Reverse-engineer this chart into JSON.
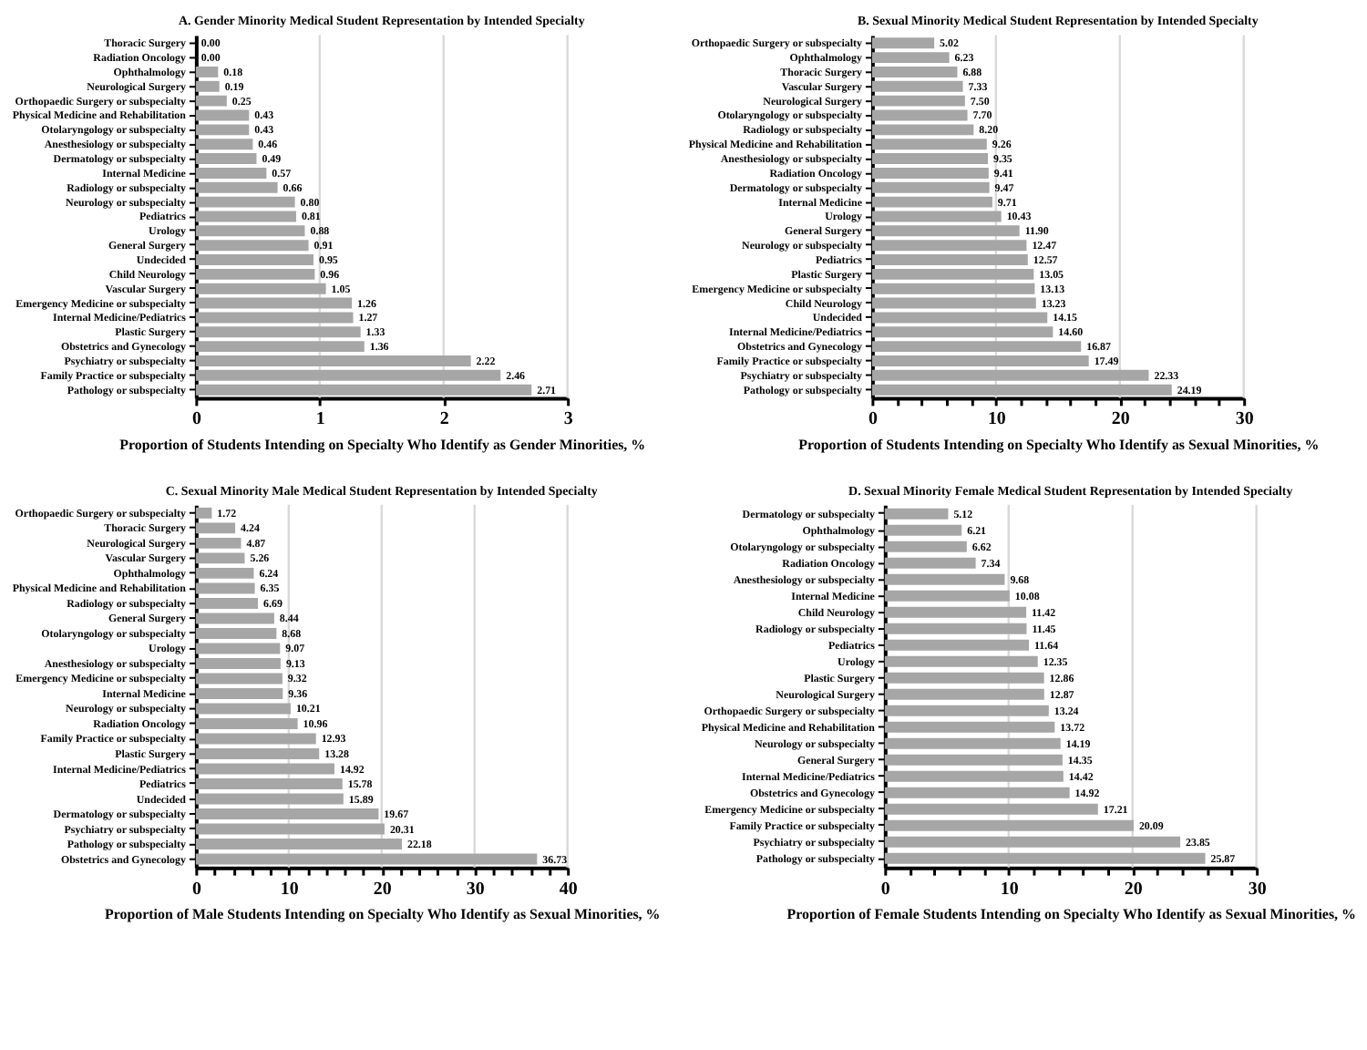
{
  "chart_data": [
    {
      "type": "bar",
      "orientation": "horizontal",
      "title": "A. Gender Minority Medical Student Representation by Intended Specialty",
      "xlabel": "Proportion of Students Intending on Specialty Who Identify as Gender Minorities,  %",
      "categories": [
        "Thoracic Surgery",
        "Radiation Oncology",
        "Ophthalmology",
        "Neurological Surgery",
        "Orthopaedic Surgery or subspecialty",
        "Physical Medicine and Rehabilitation",
        "Otolaryngology or subspecialty",
        "Anesthesiology or subspecialty",
        "Dermatology or subspecialty",
        "Internal Medicine",
        "Radiology or subspecialty",
        "Neurology or subspecialty",
        "Pediatrics",
        "Urology",
        "General Surgery",
        "Undecided",
        "Child Neurology",
        "Vascular Surgery",
        "Emergency Medicine or subspecialty",
        "Internal Medicine/Pediatrics",
        "Plastic Surgery",
        "Obstetrics and Gynecology",
        "Psychiatry or subspecialty",
        "Family Practice or subspecialty",
        "Pathology or subspecialty"
      ],
      "values": [
        0.0,
        0.0,
        0.18,
        0.19,
        0.25,
        0.43,
        0.43,
        0.46,
        0.49,
        0.57,
        0.66,
        0.8,
        0.81,
        0.88,
        0.91,
        0.95,
        0.96,
        1.05,
        1.26,
        1.27,
        1.33,
        1.36,
        2.22,
        2.46,
        2.71
      ],
      "value_labels": [
        "0.00",
        "0.00",
        "0.18",
        "0.19",
        "0.25",
        "0.43",
        "0.43",
        "0.46",
        "0.49",
        "0.57",
        "0.66",
        "0.80",
        "0.81",
        "0.88",
        "0.91",
        "0.95",
        "0.96",
        "1.05",
        "1.26",
        "1.27",
        "1.33",
        "1.36",
        "2.22",
        "2.46",
        "2.71"
      ],
      "color": "#a6a6a6",
      "xlim": [
        0,
        3
      ],
      "xticks": [
        0,
        1,
        2,
        3
      ],
      "grid": "x"
    },
    {
      "type": "bar",
      "orientation": "horizontal",
      "title": "B. Sexual Minority Medical Student Representation by Intended Specialty",
      "xlabel": "Proportion of  Students Intending on Specialty Who Identify as Sexual Minorities,  %",
      "categories": [
        "Orthopaedic Surgery or subspecialty",
        "Ophthalmology",
        "Thoracic Surgery",
        "Vascular Surgery",
        "Neurological Surgery",
        "Otolaryngology or subspecialty",
        "Radiology or subspecialty",
        "Physical Medicine and Rehabilitation",
        "Anesthesiology or subspecialty",
        "Radiation Oncology",
        "Dermatology or subspecialty",
        "Internal Medicine",
        "Urology",
        "General Surgery",
        "Neurology or subspecialty",
        "Pediatrics",
        "Plastic Surgery",
        "Emergency Medicine or subspecialty",
        "Child Neurology",
        "Undecided",
        "Internal Medicine/Pediatrics",
        "Obstetrics and Gynecology",
        "Family Practice or subspecialty",
        "Psychiatry or subspecialty",
        "Pathology or subspecialty"
      ],
      "values": [
        5.02,
        6.23,
        6.88,
        7.33,
        7.5,
        7.7,
        8.2,
        9.26,
        9.35,
        9.41,
        9.47,
        9.71,
        10.43,
        11.9,
        12.47,
        12.57,
        13.05,
        13.13,
        13.23,
        14.15,
        14.6,
        16.87,
        17.49,
        22.33,
        24.19
      ],
      "value_labels": [
        "5.02",
        "6.23",
        "6.88",
        "7.33",
        "7.50",
        "7.70",
        "8.20",
        "9.26",
        "9.35",
        "9.41",
        "9.47",
        "9.71",
        "10.43",
        "11.90",
        "12.47",
        "12.57",
        "13.05",
        "13.13",
        "13.23",
        "14.15",
        "14.60",
        "16.87",
        "17.49",
        "22.33",
        "24.19"
      ],
      "color": "#a6a6a6",
      "xlim": [
        0,
        30
      ],
      "xticks": [
        0,
        {
          "value": 2,
          "label": null
        },
        {
          "value": 4,
          "label": null
        },
        {
          "value": 6,
          "label": null
        },
        {
          "value": 8,
          "label": null
        },
        10,
        {
          "value": 12,
          "label": null
        },
        {
          "value": 14,
          "label": null
        },
        {
          "value": 16,
          "label": null
        },
        {
          "value": 18,
          "label": null
        },
        20,
        {
          "value": 22,
          "label": null
        },
        {
          "value": 24,
          "label": null
        },
        {
          "value": 26,
          "label": null
        },
        {
          "value": 28,
          "label": null
        },
        30
      ],
      "grid": "x"
    },
    {
      "type": "bar",
      "orientation": "horizontal",
      "title": "C. Sexual Minority Male Medical Student Representation by Intended Specialty",
      "xlabel": "Proportion of Male Students Intending on Specialty Who Identify as Sexual Minorities, %",
      "categories": [
        "Orthopaedic Surgery or subspecialty",
        "Thoracic Surgery",
        "Neurological Surgery",
        "Vascular Surgery",
        "Ophthalmology",
        "Physical Medicine and Rehabilitation",
        "Radiology or subspecialty",
        "General Surgery",
        "Otolaryngology or subspecialty",
        "Urology",
        "Anesthesiology or subspecialty",
        "Emergency Medicine or subspecialty",
        "Internal Medicine",
        "Neurology or subspecialty",
        "Radiation Oncology",
        "Family Practice or subspecialty",
        "Plastic Surgery",
        "Internal Medicine/Pediatrics",
        "Pediatrics",
        "Undecided",
        "Dermatology or subspecialty",
        "Psychiatry or subspecialty",
        "Pathology or subspecialty",
        "Obstetrics and Gynecology"
      ],
      "values": [
        1.72,
        4.24,
        4.87,
        5.26,
        6.24,
        6.35,
        6.69,
        8.44,
        8.68,
        9.07,
        9.13,
        9.32,
        9.36,
        10.21,
        10.96,
        12.93,
        13.28,
        14.92,
        15.78,
        15.89,
        19.67,
        20.31,
        22.18,
        36.73
      ],
      "value_labels": [
        "1.72",
        "4.24",
        "4.87",
        "5.26",
        "6.24",
        "6.35",
        "6.69",
        "8.44",
        "8.68",
        "9.07",
        "9.13",
        "9.32",
        "9.36",
        "10.21",
        "10.96",
        "12.93",
        "13.28",
        "14.92",
        "15.78",
        "15.89",
        "19.67",
        "20.31",
        "22.18",
        "36.73"
      ],
      "color": "#a6a6a6",
      "xlim": [
        0,
        40
      ],
      "xticks": [
        0,
        {
          "value": 2,
          "label": null
        },
        {
          "value": 4,
          "label": null
        },
        {
          "value": 6,
          "label": null
        },
        {
          "value": 8,
          "label": null
        },
        10,
        {
          "value": 12,
          "label": null
        },
        {
          "value": 14,
          "label": null
        },
        {
          "value": 16,
          "label": null
        },
        {
          "value": 18,
          "label": null
        },
        20,
        {
          "value": 22,
          "label": null
        },
        {
          "value": 24,
          "label": null
        },
        {
          "value": 26,
          "label": null
        },
        {
          "value": 28,
          "label": null
        },
        30,
        {
          "value": 32,
          "label": null
        },
        {
          "value": 34,
          "label": null
        },
        {
          "value": 36,
          "label": null
        },
        {
          "value": 38,
          "label": null
        },
        40
      ],
      "grid": "x"
    },
    {
      "type": "bar",
      "orientation": "horizontal",
      "title": "D. Sexual Minority Female Medical Student Representation by Intended Specialty",
      "xlabel": "Proportion of Female Students Intending on Specialty Who Identify as Sexual Minorities, %",
      "categories": [
        "Dermatology or subspecialty",
        "Ophthalmology",
        "Otolaryngology or subspecialty",
        "Radiation Oncology",
        "Anesthesiology or subspecialty",
        "Internal Medicine",
        "Child Neurology",
        "Radiology or subspecialty",
        "Pediatrics",
        "Urology",
        "Plastic Surgery",
        "Neurological Surgery",
        "Orthopaedic Surgery or subspecialty",
        "Physical Medicine and Rehabilitation",
        "Neurology or subspecialty",
        "General Surgery",
        "Internal Medicine/Pediatrics",
        "Obstetrics and Gynecology",
        "Emergency Medicine or subspecialty",
        "Family Practice or subspecialty",
        "Psychiatry or subspecialty",
        "Pathology or subspecialty"
      ],
      "values": [
        5.12,
        6.21,
        6.62,
        7.34,
        9.68,
        10.08,
        11.42,
        11.45,
        11.64,
        12.35,
        12.86,
        12.87,
        13.24,
        13.72,
        14.19,
        14.35,
        14.42,
        14.92,
        17.21,
        20.09,
        23.85,
        25.87
      ],
      "value_labels": [
        "5.12",
        "6.21",
        "6.62",
        "7.34",
        "9.68",
        "10.08",
        "11.42",
        "11.45",
        "11.64",
        "12.35",
        "12.86",
        "12.87",
        "13.24",
        "13.72",
        "14.19",
        "14.35",
        "14.42",
        "14.92",
        "17.21",
        "20.09",
        "23.85",
        "25.87"
      ],
      "color": "#a6a6a6",
      "xlim": [
        0,
        30
      ],
      "xticks": [
        0,
        {
          "value": 2,
          "label": null
        },
        {
          "value": 4,
          "label": null
        },
        {
          "value": 6,
          "label": null
        },
        {
          "value": 8,
          "label": null
        },
        10,
        {
          "value": 12,
          "label": null
        },
        {
          "value": 14,
          "label": null
        },
        {
          "value": 16,
          "label": null
        },
        {
          "value": 18,
          "label": null
        },
        20,
        {
          "value": 22,
          "label": null
        },
        {
          "value": 24,
          "label": null
        },
        {
          "value": 26,
          "label": null
        },
        {
          "value": 28,
          "label": null
        },
        30
      ],
      "grid": "x"
    }
  ]
}
